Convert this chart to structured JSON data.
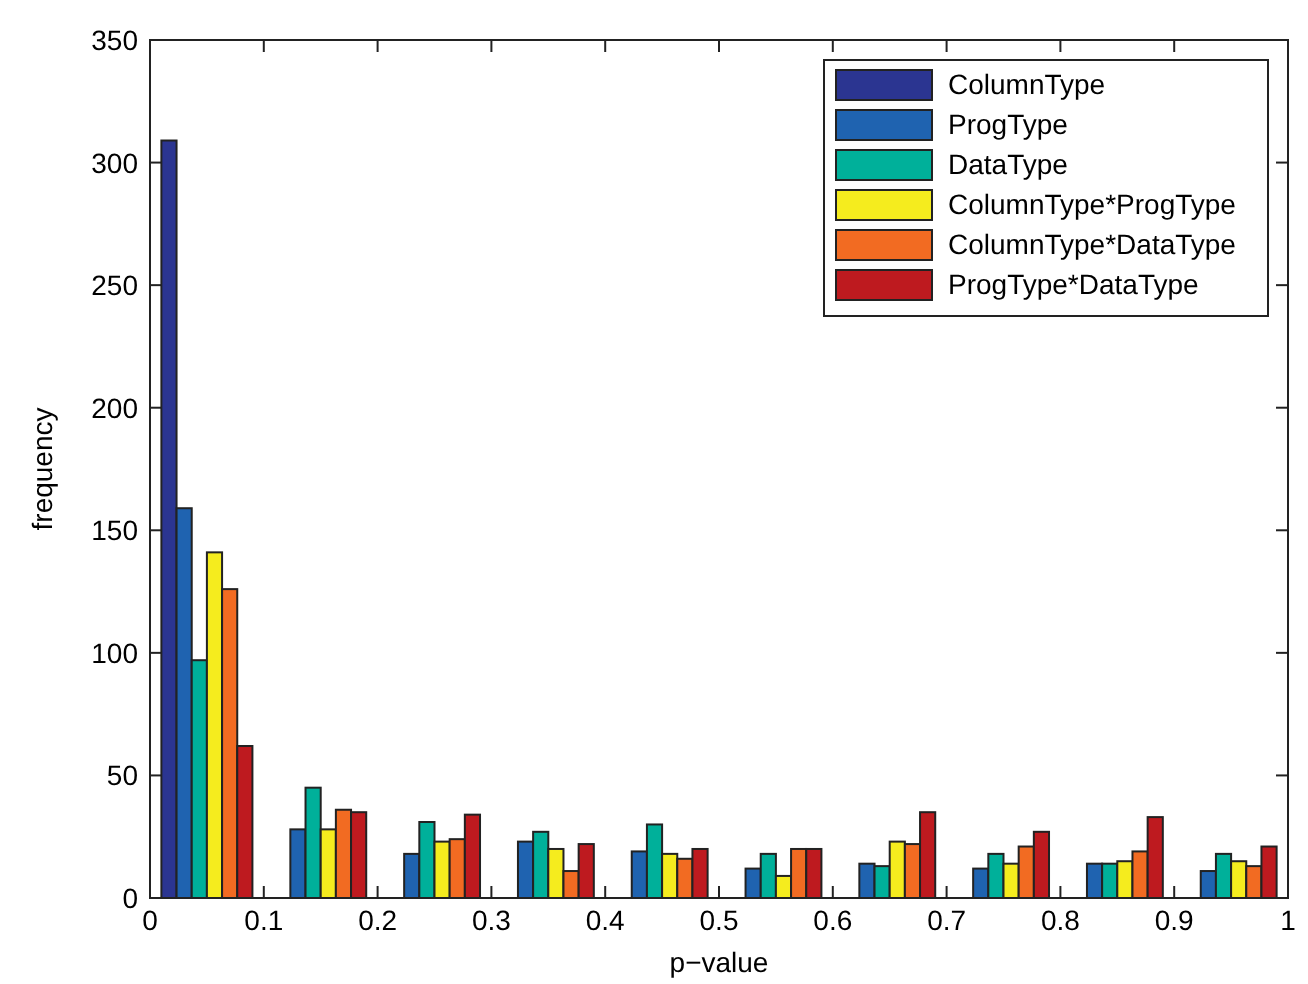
{
  "chart_data": {
    "type": "bar",
    "xlabel": "p−value",
    "ylabel": "frequency",
    "x": [
      0.05,
      0.15,
      0.25,
      0.35,
      0.45,
      0.55,
      0.65,
      0.75,
      0.85,
      0.95
    ],
    "series": [
      {
        "name": "ColumnType",
        "color": "#2b3591",
        "values": [
          309,
          0,
          0,
          0,
          0,
          0,
          0,
          0,
          0,
          0
        ]
      },
      {
        "name": "ProgType",
        "color": "#1f63b0",
        "values": [
          159,
          28,
          18,
          23,
          19,
          12,
          14,
          12,
          14,
          11
        ]
      },
      {
        "name": "DataType",
        "color": "#00b09a",
        "values": [
          97,
          45,
          31,
          27,
          30,
          18,
          13,
          18,
          14,
          18
        ]
      },
      {
        "name": "ColumnType*ProgType",
        "color": "#f5ec1e",
        "values": [
          141,
          28,
          23,
          20,
          18,
          9,
          23,
          14,
          15,
          15
        ]
      },
      {
        "name": "ColumnType*DataType",
        "color": "#f26b22",
        "values": [
          126,
          36,
          24,
          11,
          16,
          20,
          22,
          21,
          19,
          13
        ]
      },
      {
        "name": "ProgType*DataType",
        "color": "#be1a1f",
        "values": [
          62,
          35,
          34,
          22,
          20,
          20,
          35,
          27,
          33,
          21
        ]
      }
    ],
    "xlim": [
      0,
      1
    ],
    "xticks": [
      0,
      0.1,
      0.2,
      0.3,
      0.4,
      0.5,
      0.6,
      0.7,
      0.8,
      0.9,
      1
    ],
    "ylim": [
      0,
      350
    ],
    "yticks": [
      0,
      50,
      100,
      150,
      200,
      250,
      300,
      350
    ],
    "grid": false,
    "legend": "top right"
  }
}
